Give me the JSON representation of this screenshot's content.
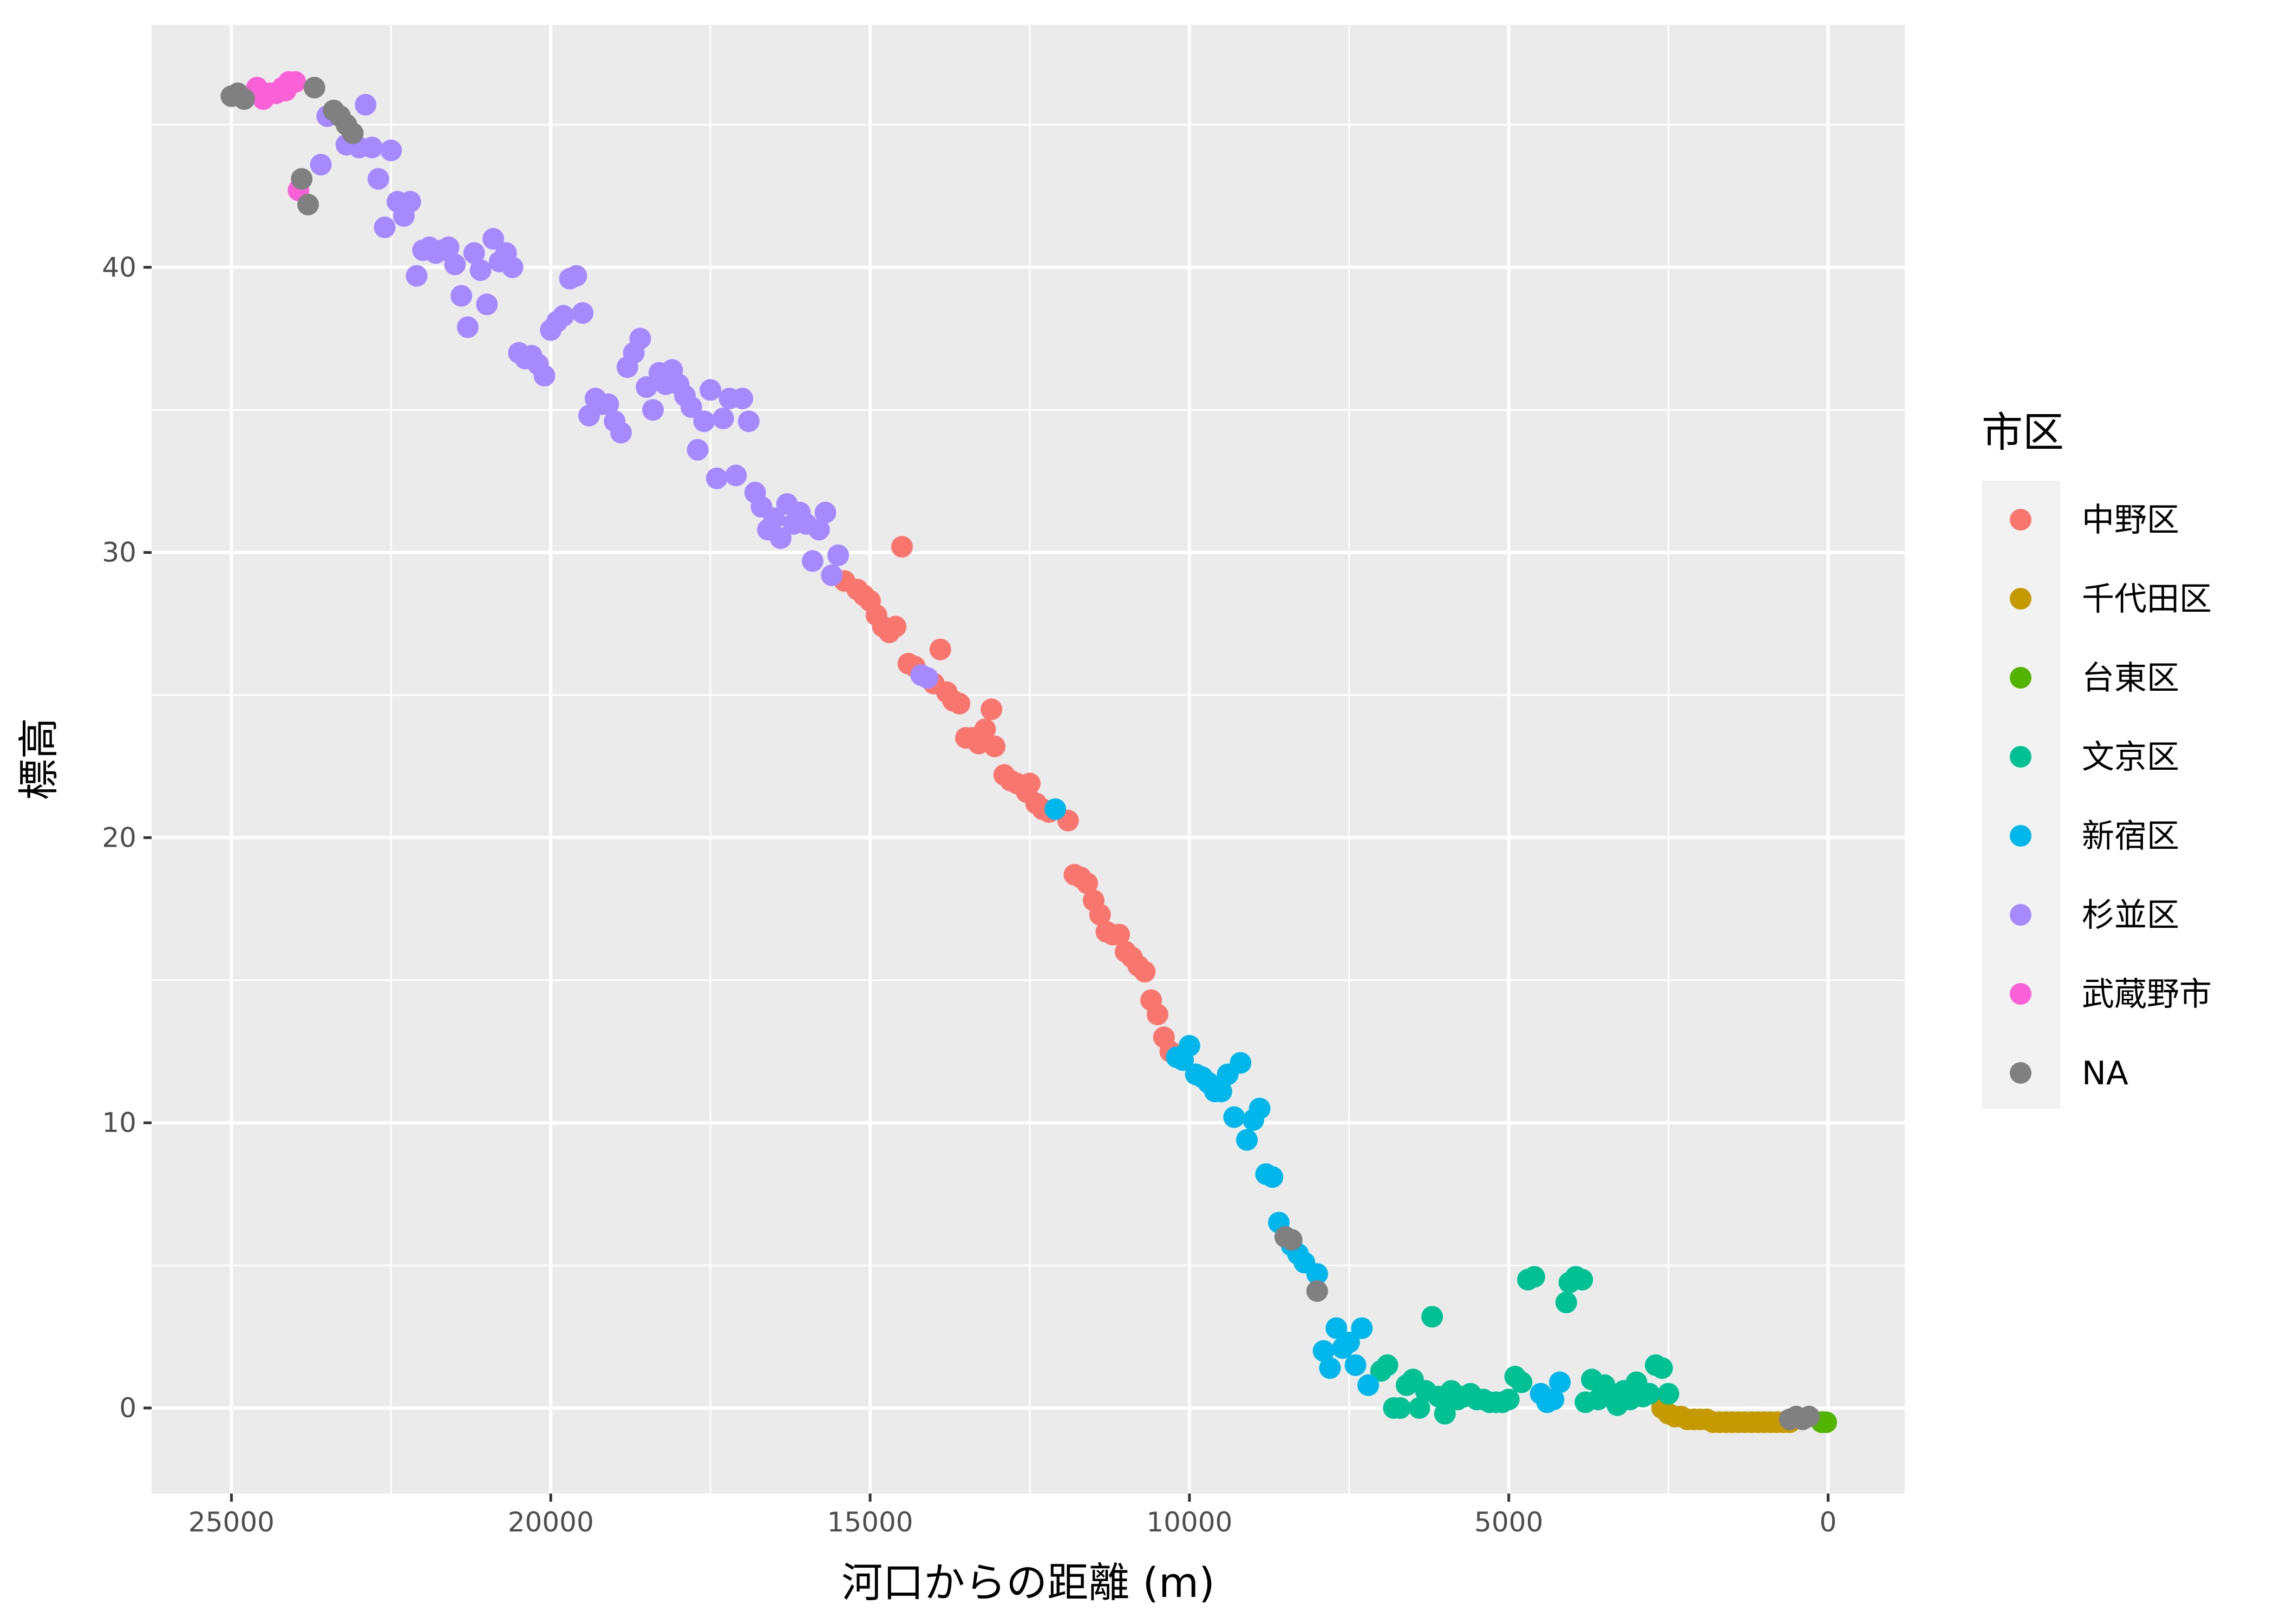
{
  "chart_data": {
    "type": "scatter",
    "xlabel": "河口からの距離 (m)",
    "ylabel": "標高",
    "x_reversed": true,
    "xlim": [
      26250,
      -1200
    ],
    "ylim": [
      -3,
      48.5
    ],
    "x_ticks": [
      "25000",
      "20000",
      "15000",
      "10000",
      "5000",
      "0"
    ],
    "y_ticks": [
      "0",
      "10",
      "20",
      "30",
      "40"
    ],
    "grid": true,
    "legend": {
      "title": "市区",
      "placement": "right",
      "entries": [
        "中野区",
        "千代田区",
        "台東区",
        "文京区",
        "新宿区",
        "杉並区",
        "武蔵野市",
        "NA"
      ]
    },
    "series": [
      {
        "name": "中野区",
        "color": "#F8766D",
        "points": [
          [
            15400,
            29.0
          ],
          [
            15200,
            28.7
          ],
          [
            15100,
            28.5
          ],
          [
            15000,
            28.3
          ],
          [
            14900,
            27.8
          ],
          [
            14800,
            27.4
          ],
          [
            14700,
            27.2
          ],
          [
            14600,
            27.4
          ],
          [
            14500,
            30.2
          ],
          [
            14400,
            26.1
          ],
          [
            14300,
            26.0
          ],
          [
            14000,
            25.4
          ],
          [
            13900,
            26.6
          ],
          [
            13800,
            25.1
          ],
          [
            13700,
            24.8
          ],
          [
            13600,
            24.7
          ],
          [
            13500,
            23.5
          ],
          [
            13400,
            23.5
          ],
          [
            13300,
            23.3
          ],
          [
            13200,
            23.8
          ],
          [
            13100,
            24.5
          ],
          [
            13050,
            23.2
          ],
          [
            12900,
            22.2
          ],
          [
            12800,
            22.0
          ],
          [
            12700,
            21.9
          ],
          [
            12550,
            21.6
          ],
          [
            12500,
            21.9
          ],
          [
            12400,
            21.2
          ],
          [
            12300,
            21.0
          ],
          [
            12200,
            20.9
          ],
          [
            11900,
            20.6
          ],
          [
            11800,
            18.7
          ],
          [
            11700,
            18.6
          ],
          [
            11600,
            18.4
          ],
          [
            11500,
            17.8
          ],
          [
            11400,
            17.3
          ],
          [
            11300,
            16.7
          ],
          [
            11200,
            16.6
          ],
          [
            11100,
            16.6
          ],
          [
            11000,
            16.0
          ],
          [
            10900,
            15.8
          ],
          [
            10800,
            15.5
          ],
          [
            10700,
            15.3
          ],
          [
            10600,
            14.3
          ],
          [
            10500,
            13.8
          ],
          [
            10400,
            13.0
          ],
          [
            10300,
            12.5
          ]
        ]
      },
      {
        "name": "千代田区",
        "color": "#C49A00",
        "points": [
          [
            2600,
            0.0
          ],
          [
            2500,
            -0.2
          ],
          [
            2400,
            -0.3
          ],
          [
            2300,
            -0.3
          ],
          [
            2200,
            -0.4
          ],
          [
            2100,
            -0.4
          ],
          [
            2000,
            -0.4
          ],
          [
            1900,
            -0.4
          ],
          [
            1800,
            -0.5
          ],
          [
            1700,
            -0.5
          ],
          [
            1600,
            -0.5
          ],
          [
            1500,
            -0.5
          ],
          [
            1400,
            -0.5
          ],
          [
            1300,
            -0.5
          ],
          [
            1200,
            -0.5
          ],
          [
            1100,
            -0.5
          ],
          [
            1000,
            -0.5
          ],
          [
            900,
            -0.5
          ],
          [
            800,
            -0.5
          ],
          [
            700,
            -0.5
          ],
          [
            600,
            -0.5
          ]
        ]
      },
      {
        "name": "台東区",
        "color": "#53B400",
        "points": [
          [
            100,
            -0.5
          ],
          [
            30,
            -0.5
          ]
        ]
      },
      {
        "name": "文京区",
        "color": "#00C094",
        "points": [
          [
            7000,
            1.3
          ],
          [
            6900,
            1.5
          ],
          [
            6800,
            0.0
          ],
          [
            6700,
            0.0
          ],
          [
            6600,
            0.8
          ],
          [
            6500,
            1.0
          ],
          [
            6400,
            0.0
          ],
          [
            6300,
            0.6
          ],
          [
            6200,
            3.2
          ],
          [
            6100,
            0.4
          ],
          [
            6000,
            -0.2
          ],
          [
            5900,
            0.6
          ],
          [
            5800,
            0.3
          ],
          [
            5700,
            0.4
          ],
          [
            5600,
            0.5
          ],
          [
            5500,
            0.3
          ],
          [
            5400,
            0.3
          ],
          [
            5300,
            0.2
          ],
          [
            5200,
            0.2
          ],
          [
            5100,
            0.2
          ],
          [
            5000,
            0.3
          ],
          [
            4900,
            1.1
          ],
          [
            4800,
            0.9
          ],
          [
            4700,
            4.5
          ],
          [
            4600,
            4.6
          ],
          [
            4100,
            3.7
          ],
          [
            4050,
            4.4
          ],
          [
            3950,
            4.6
          ],
          [
            3850,
            4.5
          ],
          [
            3800,
            0.2
          ],
          [
            3700,
            1.0
          ],
          [
            3600,
            0.3
          ],
          [
            3500,
            0.8
          ],
          [
            3400,
            0.5
          ],
          [
            3300,
            0.1
          ],
          [
            3200,
            0.6
          ],
          [
            3100,
            0.3
          ],
          [
            3000,
            0.9
          ],
          [
            2900,
            0.4
          ],
          [
            2800,
            0.5
          ],
          [
            2700,
            1.5
          ],
          [
            2600,
            1.4
          ],
          [
            2500,
            0.5
          ]
        ]
      },
      {
        "name": "新宿区",
        "color": "#00B6EB",
        "points": [
          [
            12100,
            21.0
          ],
          [
            10200,
            12.3
          ],
          [
            10100,
            12.2
          ],
          [
            10000,
            12.7
          ],
          [
            9900,
            11.7
          ],
          [
            9800,
            11.6
          ],
          [
            9700,
            11.4
          ],
          [
            9600,
            11.1
          ],
          [
            9500,
            11.1
          ],
          [
            9400,
            11.7
          ],
          [
            9300,
            10.2
          ],
          [
            9200,
            12.1
          ],
          [
            9100,
            9.4
          ],
          [
            9000,
            10.1
          ],
          [
            8900,
            10.5
          ],
          [
            8800,
            8.2
          ],
          [
            8700,
            8.1
          ],
          [
            8600,
            6.5
          ],
          [
            8400,
            5.7
          ],
          [
            8300,
            5.4
          ],
          [
            8200,
            5.1
          ],
          [
            8000,
            4.7
          ],
          [
            7900,
            2.0
          ],
          [
            7800,
            1.4
          ],
          [
            7700,
            2.8
          ],
          [
            7600,
            2.1
          ],
          [
            7500,
            2.3
          ],
          [
            7400,
            1.5
          ],
          [
            7300,
            2.8
          ],
          [
            7200,
            0.8
          ],
          [
            4500,
            0.5
          ],
          [
            4400,
            0.2
          ],
          [
            4300,
            0.3
          ],
          [
            4200,
            0.9
          ]
        ]
      },
      {
        "name": "杉並区",
        "color": "#A58AFF",
        "points": [
          [
            23500,
            45.3
          ],
          [
            23200,
            44.3
          ],
          [
            23000,
            44.2
          ],
          [
            22900,
            45.7
          ],
          [
            22800,
            44.2
          ],
          [
            22700,
            43.1
          ],
          [
            22600,
            41.4
          ],
          [
            22500,
            44.1
          ],
          [
            22400,
            42.3
          ],
          [
            22300,
            41.8
          ],
          [
            22200,
            42.3
          ],
          [
            22100,
            39.7
          ],
          [
            22000,
            40.6
          ],
          [
            21900,
            40.7
          ],
          [
            21800,
            40.5
          ],
          [
            21700,
            40.6
          ],
          [
            21600,
            40.7
          ],
          [
            21500,
            40.1
          ],
          [
            21400,
            39.0
          ],
          [
            21300,
            37.9
          ],
          [
            21200,
            40.5
          ],
          [
            21100,
            39.9
          ],
          [
            21000,
            38.7
          ],
          [
            20900,
            41.0
          ],
          [
            20800,
            40.2
          ],
          [
            20700,
            40.5
          ],
          [
            20600,
            40.0
          ],
          [
            20500,
            37.0
          ],
          [
            20400,
            36.8
          ],
          [
            20300,
            36.9
          ],
          [
            20200,
            36.6
          ],
          [
            20100,
            36.2
          ],
          [
            20000,
            37.8
          ],
          [
            19900,
            38.1
          ],
          [
            19800,
            38.3
          ],
          [
            19700,
            39.6
          ],
          [
            19600,
            39.7
          ],
          [
            19500,
            38.4
          ],
          [
            19400,
            34.8
          ],
          [
            19300,
            35.4
          ],
          [
            19200,
            35.2
          ],
          [
            19100,
            35.2
          ],
          [
            19000,
            34.6
          ],
          [
            18900,
            34.2
          ],
          [
            18800,
            36.5
          ],
          [
            18700,
            37.0
          ],
          [
            18600,
            37.5
          ],
          [
            18500,
            35.8
          ],
          [
            18400,
            35.0
          ],
          [
            18300,
            36.3
          ],
          [
            18200,
            35.9
          ],
          [
            18100,
            36.4
          ],
          [
            18000,
            35.9
          ],
          [
            17900,
            35.5
          ],
          [
            17800,
            35.1
          ],
          [
            17700,
            33.6
          ],
          [
            17600,
            34.6
          ],
          [
            17500,
            35.7
          ],
          [
            17400,
            32.6
          ],
          [
            17300,
            34.7
          ],
          [
            17200,
            35.4
          ],
          [
            17100,
            32.7
          ],
          [
            17000,
            35.4
          ],
          [
            16900,
            34.6
          ],
          [
            16800,
            32.1
          ],
          [
            16700,
            31.6
          ],
          [
            16600,
            30.8
          ],
          [
            16500,
            31.2
          ],
          [
            16400,
            30.5
          ],
          [
            16300,
            31.7
          ],
          [
            16200,
            31.0
          ],
          [
            16100,
            31.4
          ],
          [
            16000,
            31.0
          ],
          [
            15900,
            29.7
          ],
          [
            15800,
            30.8
          ],
          [
            15700,
            31.4
          ],
          [
            15600,
            29.2
          ],
          [
            15500,
            29.9
          ],
          [
            23600,
            43.6
          ],
          [
            14200,
            25.7
          ],
          [
            14100,
            25.6
          ]
        ]
      },
      {
        "name": "武蔵野市",
        "color": "#FB61D7",
        "points": [
          [
            24600,
            46.3
          ],
          [
            24500,
            45.9
          ],
          [
            24400,
            46.1
          ],
          [
            24300,
            46.1
          ],
          [
            24200,
            46.3
          ],
          [
            24100,
            46.5
          ],
          [
            24000,
            46.5
          ],
          [
            24150,
            46.2
          ],
          [
            23950,
            42.7
          ]
        ]
      },
      {
        "name": "NA",
        "color": "#808080",
        "points": [
          [
            25000,
            46.0
          ],
          [
            24900,
            46.1
          ],
          [
            24800,
            45.9
          ],
          [
            23900,
            43.1
          ],
          [
            23800,
            42.2
          ],
          [
            23700,
            46.3
          ],
          [
            23400,
            45.5
          ],
          [
            23300,
            45.3
          ],
          [
            23200,
            45.0
          ],
          [
            23100,
            44.7
          ],
          [
            8500,
            6.0
          ],
          [
            8400,
            5.9
          ],
          [
            8000,
            4.1
          ],
          [
            600,
            -0.4
          ],
          [
            500,
            -0.3
          ],
          [
            400,
            -0.4
          ],
          [
            300,
            -0.3
          ]
        ]
      }
    ]
  }
}
